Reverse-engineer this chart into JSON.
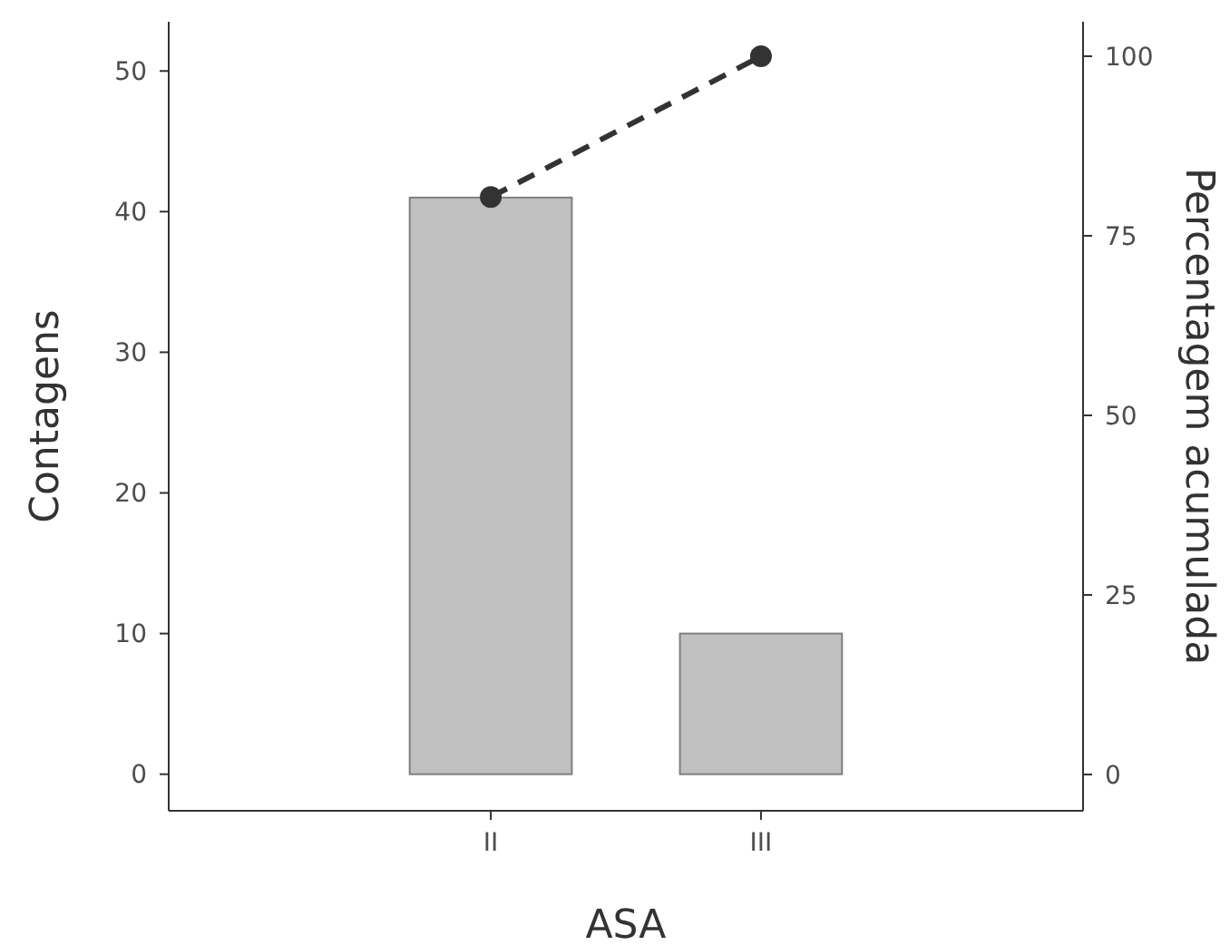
{
  "chart_data": {
    "type": "bar",
    "xlabel": "ASA",
    "ylabel": "Contagens",
    "y2label": "Percentagem acumulada",
    "categories": [
      "II",
      "III"
    ],
    "series": [
      {
        "color": "#c0c0c0",
        "values": [
          41,
          10
        ]
      },
      {
        "type": "line",
        "axis": "y2",
        "color": "#333333",
        "values": [
          80.4,
          100
        ],
        "marker": "circle",
        "line_style": "dashed"
      }
    ],
    "ylim": [
      -2.6,
      53.5
    ],
    "yticks": [
      0,
      10,
      20,
      30,
      40,
      50
    ],
    "y2lim": [
      -5.05,
      104.8
    ],
    "y2ticks": [
      0,
      25,
      50,
      75,
      100
    ],
    "grid": false
  }
}
